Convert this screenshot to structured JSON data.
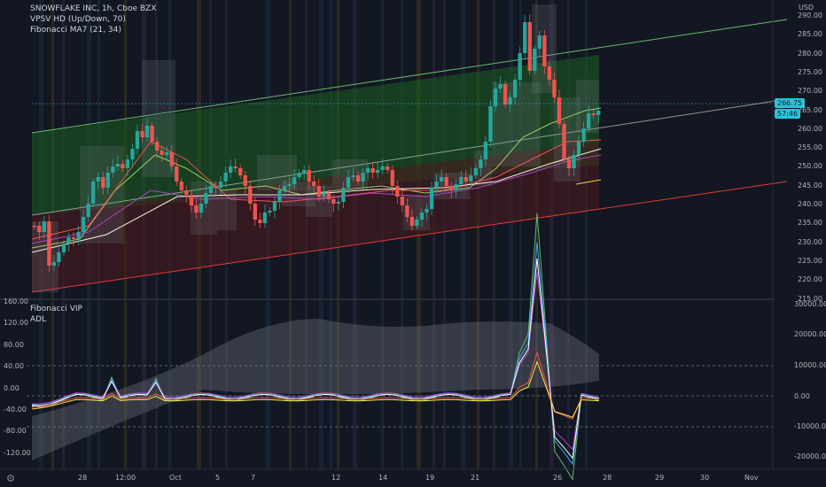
{
  "header": {
    "symbol_line": "SNOWFLAKE INC, 1h, Cboe BZX",
    "indicator_1": "VPSV HD (Up/Down, 70)",
    "indicator_2": "Fibonacci MA7 (21, 34)"
  },
  "lower_panel": {
    "indicator_1": "Fibonacci VIP",
    "indicator_2": "ADL"
  },
  "price_axis": {
    "currency": "USD",
    "labels": [
      "290.00",
      "285.00",
      "280.00",
      "275.00",
      "270.00",
      "265.00",
      "260.00",
      "255.00",
      "250.00",
      "245.00",
      "240.00",
      "235.00",
      "230.00",
      "225.00",
      "220.00",
      "215.00"
    ],
    "current_price": "266.75",
    "countdown": "57:46"
  },
  "osc_left_axis": {
    "labels": [
      "160.00",
      "120.00",
      "80.00",
      "40.00",
      "0.00",
      "-40.00",
      "-80.00",
      "-120.00"
    ]
  },
  "osc_right_axis": {
    "labels": [
      "30000.00",
      "20000.00",
      "10000.00",
      "0.00",
      "-10000.00",
      "-20000.00"
    ]
  },
  "time_axis": {
    "labels": [
      "28",
      "12:00",
      "Oct",
      "5",
      "7",
      "12",
      "14",
      "19",
      "21",
      "26",
      "28",
      "29",
      "30",
      "Nov"
    ]
  },
  "corner_icon": "settings-gear-icon",
  "colors": {
    "background": "#131722",
    "channel_upper": "#4caf50",
    "channel_lower": "#e53935",
    "up_candle": "#26a69a",
    "down_candle": "#ef5350",
    "price_tag": "#26c6da"
  }
}
